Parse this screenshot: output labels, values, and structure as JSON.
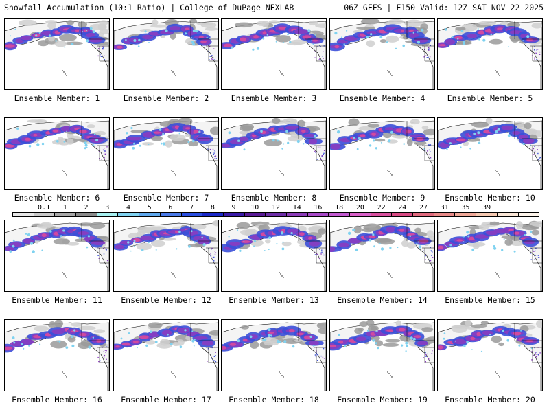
{
  "header": {
    "title_left": "Snowfall Accumulation (10:1 Ratio) | College of DuPage NEXLAB",
    "title_right": "06Z GEFS | F150 Valid: 12Z SAT NOV 22 2025"
  },
  "members": [
    {
      "label": "Ensemble Member: 1"
    },
    {
      "label": "Ensemble Member: 2"
    },
    {
      "label": "Ensemble Member: 3"
    },
    {
      "label": "Ensemble Member: 4"
    },
    {
      "label": "Ensemble Member: 5"
    },
    {
      "label": "Ensemble Member: 6"
    },
    {
      "label": "Ensemble Member: 7"
    },
    {
      "label": "Ensemble Member: 8"
    },
    {
      "label": "Ensemble Member: 9"
    },
    {
      "label": "Ensemble Member: 10"
    },
    {
      "label": "Ensemble Member: 11"
    },
    {
      "label": "Ensemble Member: 12"
    },
    {
      "label": "Ensemble Member: 13"
    },
    {
      "label": "Ensemble Member: 14"
    },
    {
      "label": "Ensemble Member: 15"
    },
    {
      "label": "Ensemble Member: 16"
    },
    {
      "label": "Ensemble Member: 17"
    },
    {
      "label": "Ensemble Member: 18"
    },
    {
      "label": "Ensemble Member: 19"
    },
    {
      "label": "Ensemble Member: 20"
    }
  ],
  "colorbar": {
    "values": [
      "0.1",
      "1",
      "2",
      "3",
      "4",
      "5",
      "6",
      "7",
      "8",
      "9",
      "10",
      "12",
      "14",
      "16",
      "18",
      "20",
      "22",
      "24",
      "27",
      "31",
      "35",
      "39"
    ],
    "colors": [
      "#e6e6e6",
      "#c8c8c8",
      "#a8a8a8",
      "#8a8a8a",
      "#a6f0f0",
      "#7fd2f0",
      "#5fa8ee",
      "#4a7ae8",
      "#2a4ee0",
      "#1a28c8",
      "#3a1aa8",
      "#5a1a96",
      "#6e2ea8",
      "#8c3cb8",
      "#a84ac8",
      "#c25ad0",
      "#d860c8",
      "#d8509e",
      "#d84a84",
      "#e06a7e",
      "#e88a88",
      "#f0a898",
      "#f5c8b0",
      "#fae6d6",
      "#fdf4ea"
    ]
  },
  "map_colors": {
    "ocean": "#ffffff",
    "light_snow": "#cfcfcf",
    "mid_snow": "#9a9a9a",
    "heavy_blue": "#3b4fd8",
    "heavy_purple": "#8a3cc0",
    "extreme_pink": "#d04aa0",
    "cyan": "#7fd2f0"
  }
}
